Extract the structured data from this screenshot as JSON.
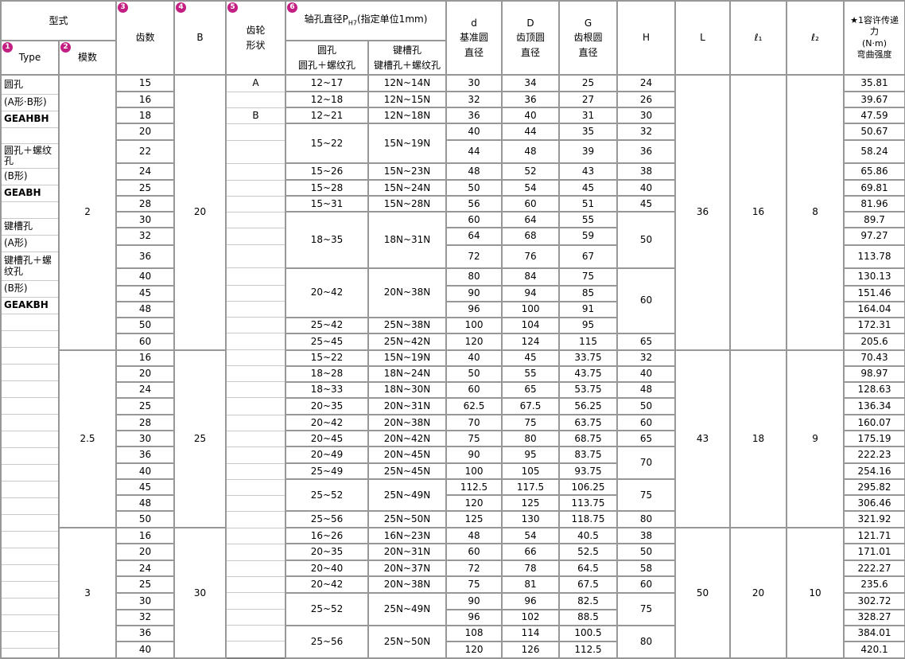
{
  "header": {
    "type_group_label": "型式",
    "cols": {
      "type": {
        "badge": "1",
        "label": "Type"
      },
      "module": {
        "badge": "2",
        "label": "模数"
      },
      "teeth": {
        "badge": "3",
        "label": "齿数"
      },
      "b": {
        "badge": "4",
        "label": "B"
      },
      "shape": {
        "badge": "5",
        "line1": "齿轮",
        "line2": "形状"
      },
      "bore": {
        "badge": "6",
        "prefix": "轴孔直径P",
        "sub": "H7",
        "suffix": "(指定单位1mm)"
      },
      "round_hole": {
        "line1": "圆孔",
        "line2": "圆孔＋螺纹孔"
      },
      "key_hole": {
        "line1": "键槽孔",
        "line2": "键槽孔＋螺纹孔"
      },
      "d": {
        "line1": "d",
        "line2": "基准圆",
        "line3": "直径"
      },
      "dd": {
        "line1": "D",
        "line2": "齿顶圆",
        "line3": "直径"
      },
      "g": {
        "line1": "G",
        "line2": "齿根圆",
        "line3": "直径"
      },
      "h": "H",
      "l": "L",
      "l1": "ℓ₁",
      "l2": "ℓ₂",
      "strength": {
        "line1": "★1容许传递",
        "line2": "力",
        "line3": "(N·m)",
        "line4": "弯曲强度"
      }
    }
  },
  "type_column": [
    "圆孔",
    "(A形·B形)",
    "GEAHBH",
    "",
    "圆孔＋螺纹孔",
    "(B形)",
    "GEABH",
    "",
    "键槽孔",
    "(A形)",
    "键槽孔＋螺纹孔",
    "(B形)",
    "GEAKBH"
  ],
  "sections": [
    {
      "module": "2",
      "B": "20",
      "L": "36",
      "l1": "16",
      "l2": "8",
      "rows": [
        {
          "teeth": "15",
          "shape": "A",
          "round": "12~17",
          "key": "12N~14N",
          "d": "30",
          "D": "34",
          "G": "25",
          "H": "24",
          "strength": "35.81"
        },
        {
          "teeth": "16",
          "round": "12~18",
          "key": "12N~15N",
          "d": "32",
          "D": "36",
          "G": "27",
          "H": "26",
          "strength": "39.67"
        },
        {
          "teeth": "18",
          "shape": "B",
          "round": "12~21",
          "key": "12N~18N",
          "d": "36",
          "D": "40",
          "G": "31",
          "H": "30",
          "strength": "47.59"
        },
        {
          "teeth": "20",
          "round": {
            "text": "15~22",
            "span": 2
          },
          "key": {
            "text": "15N~19N",
            "span": 2
          },
          "d": "40",
          "D": "44",
          "G": "35",
          "H": "32",
          "strength": "50.67"
        },
        {
          "teeth": "22",
          "d": "44",
          "D": "48",
          "G": "39",
          "H": "36",
          "strength": "58.24"
        },
        {
          "teeth": "24",
          "round": "15~26",
          "key": "15N~23N",
          "d": "48",
          "D": "52",
          "G": "43",
          "H": "38",
          "strength": "65.86"
        },
        {
          "teeth": "25",
          "round": "15~28",
          "key": "15N~24N",
          "d": "50",
          "D": "54",
          "G": "45",
          "H": "40",
          "strength": "69.81"
        },
        {
          "teeth": "28",
          "round": "15~31",
          "key": "15N~28N",
          "d": "56",
          "D": "60",
          "G": "51",
          "H": "45",
          "strength": "81.96"
        },
        {
          "teeth": "30",
          "round": {
            "text": "18~35",
            "span": 3
          },
          "key": {
            "text": "18N~31N",
            "span": 3
          },
          "d": "60",
          "D": "64",
          "G": "55",
          "H": {
            "text": "50",
            "span": 3
          },
          "strength": "89.7"
        },
        {
          "teeth": "32",
          "d": "64",
          "D": "68",
          "G": "59",
          "strength": "97.27"
        },
        {
          "teeth": "36",
          "d": "72",
          "D": "76",
          "G": "67",
          "strength": "113.78"
        },
        {
          "teeth": "40",
          "round": {
            "text": "20~42",
            "span": 3
          },
          "key": {
            "text": "20N~38N",
            "span": 3
          },
          "d": "80",
          "D": "84",
          "G": "75",
          "H": {
            "text": "60",
            "span": 4
          },
          "strength": "130.13"
        },
        {
          "teeth": "45",
          "d": "90",
          "D": "94",
          "G": "85",
          "strength": "151.46"
        },
        {
          "teeth": "48",
          "d": "96",
          "D": "100",
          "G": "91",
          "strength": "164.04"
        },
        {
          "teeth": "50",
          "round": "25~42",
          "key": "25N~38N",
          "d": "100",
          "D": "104",
          "G": "95",
          "strength": "172.31"
        },
        {
          "teeth": "60",
          "round": "25~45",
          "key": "25N~42N",
          "d": "120",
          "D": "124",
          "G": "115",
          "H": "65",
          "strength": "205.6"
        }
      ]
    },
    {
      "module": "2.5",
      "B": "25",
      "L": "43",
      "l1": "18",
      "l2": "9",
      "rows": [
        {
          "teeth": "16",
          "round": "15~22",
          "key": "15N~19N",
          "d": "40",
          "D": "45",
          "G": "33.75",
          "H": "32",
          "strength": "70.43"
        },
        {
          "teeth": "20",
          "round": "18~28",
          "key": "18N~24N",
          "d": "50",
          "D": "55",
          "G": "43.75",
          "H": "40",
          "strength": "98.97"
        },
        {
          "teeth": "24",
          "round": "18~33",
          "key": "18N~30N",
          "d": "60",
          "D": "65",
          "G": "53.75",
          "H": "48",
          "strength": "128.63"
        },
        {
          "teeth": "25",
          "round": "20~35",
          "key": "20N~31N",
          "d": "62.5",
          "D": "67.5",
          "G": "56.25",
          "H": "50",
          "strength": "136.34"
        },
        {
          "teeth": "28",
          "round": "20~42",
          "key": "20N~38N",
          "d": "70",
          "D": "75",
          "G": "63.75",
          "H": "60",
          "strength": "160.07"
        },
        {
          "teeth": "30",
          "round": "20~45",
          "key": "20N~42N",
          "d": "75",
          "D": "80",
          "G": "68.75",
          "H": "65",
          "strength": "175.19"
        },
        {
          "teeth": "36",
          "round": "20~49",
          "key": "20N~45N",
          "d": "90",
          "D": "95",
          "G": "83.75",
          "H": {
            "text": "70",
            "span": 2
          },
          "strength": "222.23"
        },
        {
          "teeth": "40",
          "round": "25~49",
          "key": "25N~45N",
          "d": "100",
          "D": "105",
          "G": "93.75",
          "strength": "254.16"
        },
        {
          "teeth": "45",
          "round": {
            "text": "25~52",
            "span": 2
          },
          "key": {
            "text": "25N~49N",
            "span": 2
          },
          "d": "112.5",
          "D": "117.5",
          "G": "106.25",
          "H": {
            "text": "75",
            "span": 2
          },
          "strength": "295.82"
        },
        {
          "teeth": "48",
          "d": "120",
          "D": "125",
          "G": "113.75",
          "strength": "306.46"
        },
        {
          "teeth": "50",
          "round": "25~56",
          "key": "25N~50N",
          "d": "125",
          "D": "130",
          "G": "118.75",
          "H": "80",
          "strength": "321.92"
        }
      ]
    },
    {
      "module": "3",
      "B": "30",
      "L": "50",
      "l1": "20",
      "l2": "10",
      "rows": [
        {
          "teeth": "16",
          "round": "16~26",
          "key": "16N~23N",
          "d": "48",
          "D": "54",
          "G": "40.5",
          "H": "38",
          "strength": "121.71"
        },
        {
          "teeth": "20",
          "round": "20~35",
          "key": "20N~31N",
          "d": "60",
          "D": "66",
          "G": "52.5",
          "H": "50",
          "strength": "171.01"
        },
        {
          "teeth": "24",
          "round": "20~40",
          "key": "20N~37N",
          "d": "72",
          "D": "78",
          "G": "64.5",
          "H": "58",
          "strength": "222.27"
        },
        {
          "teeth": "25",
          "round": "20~42",
          "key": "20N~38N",
          "d": "75",
          "D": "81",
          "G": "67.5",
          "H": "60",
          "strength": "235.6"
        },
        {
          "teeth": "30",
          "round": {
            "text": "25~52",
            "span": 2
          },
          "key": {
            "text": "25N~49N",
            "span": 2
          },
          "d": "90",
          "D": "96",
          "G": "82.5",
          "H": {
            "text": "75",
            "span": 2
          },
          "strength": "302.72"
        },
        {
          "teeth": "32",
          "d": "96",
          "D": "102",
          "G": "88.5",
          "strength": "328.27"
        },
        {
          "teeth": "36",
          "round": {
            "text": "25~56",
            "span": 2
          },
          "key": {
            "text": "25N~50N",
            "span": 2
          },
          "d": "108",
          "D": "114",
          "G": "100.5",
          "H": {
            "text": "80",
            "span": 2
          },
          "strength": "384.01"
        },
        {
          "teeth": "40",
          "d": "120",
          "D": "126",
          "G": "112.5",
          "strength": "420.1"
        }
      ]
    }
  ],
  "colors": {
    "grid": "#979797",
    "light_grid": "#c9c9c9",
    "badge": "#c31e82",
    "text": "#000000",
    "background": "#ffffff"
  }
}
